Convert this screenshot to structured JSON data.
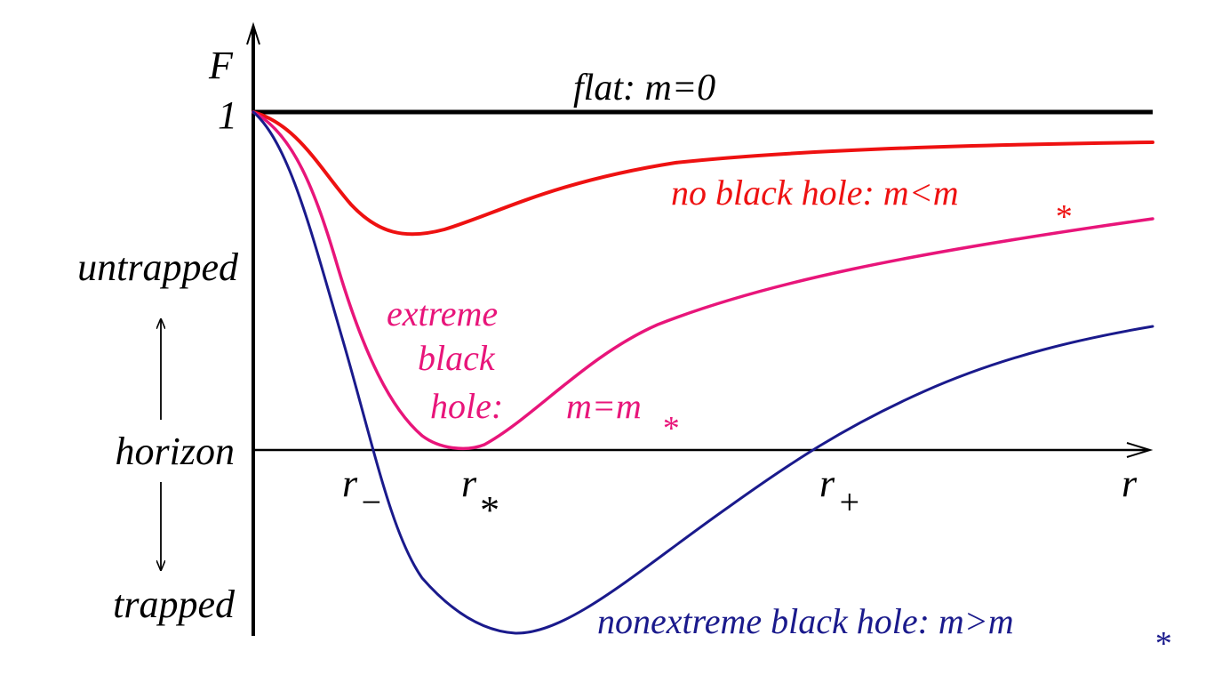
{
  "colors": {
    "axis": "#000000",
    "flat": "#000000",
    "no_black_hole": "#ee1111",
    "extreme_black_hole": "#e8157a",
    "nonextreme_black_hole": "#1a1a8c"
  },
  "axis_labels": {
    "y_axis": "F",
    "y_tick_one": "1",
    "x_axis": "r"
  },
  "side_labels": {
    "untrapped": "untrapped",
    "horizon": "horizon",
    "trapped": "trapped"
  },
  "radii": {
    "r_minus": {
      "base": "r",
      "sub": "−"
    },
    "r_star": {
      "base": "r",
      "sub": "*"
    },
    "r_plus": {
      "base": "r",
      "sub": "+"
    }
  },
  "curves": {
    "flat": {
      "label": "flat: m=0"
    },
    "no_black_hole": {
      "label": "no black hole: m<m",
      "sub": "*"
    },
    "extreme_black_hole": {
      "label_line1": "extreme",
      "label_line2": "black",
      "label_line3a": "hole:",
      "label_line3b": "m=m",
      "sub": "*"
    },
    "nonextreme_black_hole": {
      "label": "nonextreme black hole: m>m",
      "sub": "*"
    }
  }
}
